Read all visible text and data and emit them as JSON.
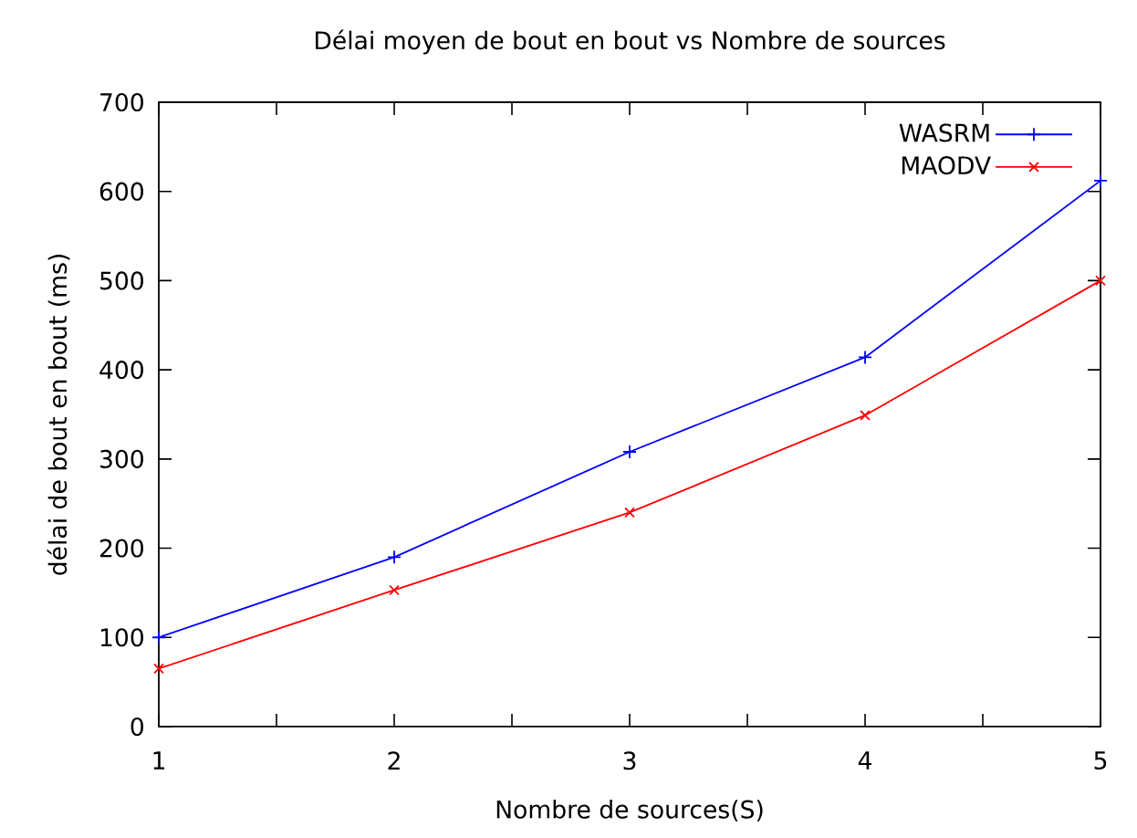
{
  "chart_data": {
    "type": "line",
    "title": "Délai moyen de bout en bout vs Nombre de sources",
    "xlabel": "Nombre de sources(S)",
    "ylabel": "délai de bout en bout (ms)",
    "x": [
      1,
      2,
      3,
      4,
      5
    ],
    "series": [
      {
        "name": "WASRM",
        "color": "#0000ff",
        "marker": "plus",
        "values": [
          100,
          190,
          308,
          414,
          612
        ]
      },
      {
        "name": "MAODV",
        "color": "#ff0000",
        "marker": "cross",
        "values": [
          65,
          153,
          240,
          349,
          500
        ]
      }
    ],
    "xlim": [
      1,
      5
    ],
    "ylim": [
      0,
      700
    ],
    "xticks": [
      1,
      {
        "value": 1.5,
        "label": null
      },
      2,
      {
        "value": 2.5,
        "label": null
      },
      3,
      {
        "value": 3.5,
        "label": null
      },
      4,
      {
        "value": 4.5,
        "label": null
      },
      5
    ],
    "yticks": [
      0,
      100,
      200,
      300,
      400,
      500,
      600,
      700
    ],
    "legend": "top right",
    "grid": false
  }
}
